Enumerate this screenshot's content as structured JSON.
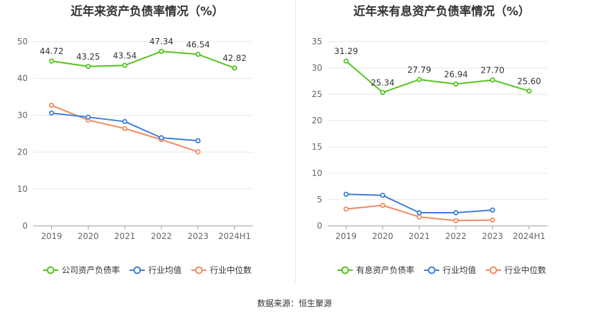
{
  "chart_data": [
    {
      "type": "line",
      "title": "近年来资产负债率情况（%）",
      "categories": [
        "2019",
        "2020",
        "2021",
        "2022",
        "2023",
        "2024H1"
      ],
      "ylim": [
        0,
        50
      ],
      "yticks": [
        0,
        10,
        20,
        30,
        40,
        50
      ],
      "grid": true,
      "legend_position": "bottom",
      "series": [
        {
          "name": "公司资产负债率",
          "color": "#52c41a",
          "values": [
            44.72,
            43.25,
            43.54,
            47.34,
            46.54,
            42.82
          ],
          "labels": [
            "44.72",
            "43.25",
            "43.54",
            "47.34",
            "46.54",
            "42.82"
          ]
        },
        {
          "name": "行业均值",
          "color": "#3a7ddb",
          "values": [
            30.6,
            29.5,
            28.3,
            23.9,
            23.1,
            null
          ],
          "labels": null
        },
        {
          "name": "行业中位数",
          "color": "#f08a5d",
          "values": [
            32.7,
            28.7,
            26.4,
            23.4,
            20.1,
            null
          ],
          "labels": null
        }
      ]
    },
    {
      "type": "line",
      "title": "近年来有息资产负债率情况（%）",
      "categories": [
        "2019",
        "2020",
        "2021",
        "2022",
        "2023",
        "2024H1"
      ],
      "ylim": [
        0,
        35
      ],
      "yticks": [
        0,
        5,
        10,
        15,
        20,
        25,
        30,
        35
      ],
      "grid": true,
      "legend_position": "bottom",
      "series": [
        {
          "name": "有息资产负债率",
          "color": "#52c41a",
          "values": [
            31.29,
            25.34,
            27.79,
            26.94,
            27.7,
            25.6
          ],
          "labels": [
            "31.29",
            "25.34",
            "27.79",
            "26.94",
            "27.70",
            "25.60"
          ]
        },
        {
          "name": "行业均值",
          "color": "#3a7ddb",
          "values": [
            6.0,
            5.8,
            2.5,
            2.5,
            3.0,
            null
          ],
          "labels": null
        },
        {
          "name": "行业中位数",
          "color": "#f08a5d",
          "values": [
            3.2,
            3.9,
            1.7,
            1.0,
            1.1,
            null
          ],
          "labels": null
        }
      ]
    }
  ],
  "footer": {
    "source": "数据来源：恒生聚源"
  }
}
